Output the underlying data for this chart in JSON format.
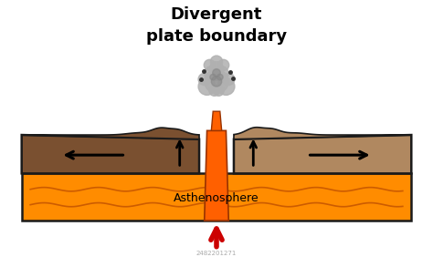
{
  "title_line1": "Divergent",
  "title_line2": "plate boundary",
  "title_fontsize": 13,
  "title_fontweight": "bold",
  "asthenosphere_label": "Asthenosphere",
  "asthenosphere_fontsize": 9,
  "background_color": "#ffffff",
  "asthenosphere_color": "#FF8C00",
  "asthenosphere_border_color": "#1a1a1a",
  "left_plate_color": "#7a5030",
  "right_plate_color": "#b08860",
  "lava_color": "#FF6000",
  "arrow_color": "#CC0000",
  "plate_border_color": "#1a1a1a",
  "smoke_color": "#b0b0b0",
  "smoke_dark_color": "#888888",
  "watermark": "2482201271",
  "wave_color": "#c05000"
}
